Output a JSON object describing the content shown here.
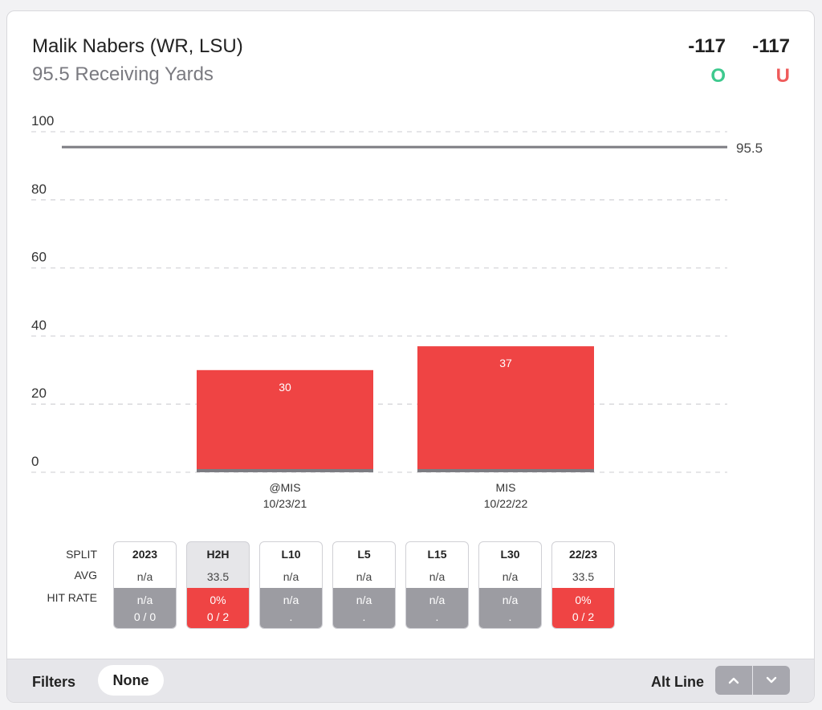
{
  "header": {
    "player_name": "Malik Nabers (WR, LSU)",
    "prop_line": "95.5 Receiving Yards",
    "over_odds": "-117",
    "under_odds": "-117",
    "over_label": "O",
    "under_label": "U",
    "over_color": "#3ec98e",
    "under_color": "#ef5b5b"
  },
  "chart_data": {
    "type": "bar",
    "categories": [
      "@MIS",
      "MIS"
    ],
    "category_dates": [
      "10/23/21",
      "10/22/22"
    ],
    "values": [
      30,
      37
    ],
    "ylim": [
      0,
      100
    ],
    "yticks": [
      0,
      20,
      40,
      60,
      80,
      100
    ],
    "line_value": 95.5,
    "line_label": "95.5",
    "bar_color": "#ef4444",
    "grid": true
  },
  "splits": {
    "row_labels": [
      "SPLIT",
      "AVG",
      "HIT RATE"
    ],
    "columns": [
      {
        "name": "2023",
        "avg": "n/a",
        "hit_pct": "n/a",
        "hit_frac": "0 / 0",
        "status": "na",
        "active": false
      },
      {
        "name": "H2H",
        "avg": "33.5",
        "hit_pct": "0%",
        "hit_frac": "0 / 2",
        "status": "red",
        "active": true
      },
      {
        "name": "L10",
        "avg": "n/a",
        "hit_pct": "n/a",
        "hit_frac": ".",
        "status": "na",
        "active": false
      },
      {
        "name": "L5",
        "avg": "n/a",
        "hit_pct": "n/a",
        "hit_frac": ".",
        "status": "na",
        "active": false
      },
      {
        "name": "L15",
        "avg": "n/a",
        "hit_pct": "n/a",
        "hit_frac": ".",
        "status": "na",
        "active": false
      },
      {
        "name": "L30",
        "avg": "n/a",
        "hit_pct": "n/a",
        "hit_frac": ".",
        "status": "na",
        "active": false
      },
      {
        "name": "22/23",
        "avg": "33.5",
        "hit_pct": "0%",
        "hit_frac": "0 / 2",
        "status": "red",
        "active": false
      }
    ]
  },
  "footer": {
    "filters_label": "Filters",
    "filter_value": "None",
    "alt_line_label": "Alt Line",
    "up_icon": "chevron-up-icon",
    "down_icon": "chevron-down-icon"
  }
}
